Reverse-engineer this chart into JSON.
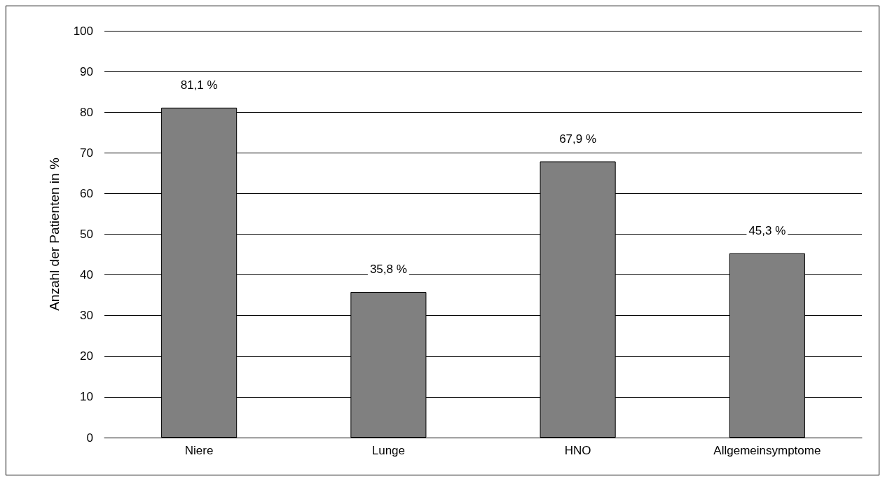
{
  "chart_data": {
    "type": "bar",
    "ylabel": "Anzahl der Patienten in %",
    "categories": [
      "Niere",
      "Lunge",
      "HNO",
      "Allgemeinsymptome"
    ],
    "values": [
      81.1,
      35.8,
      67.9,
      45.3
    ],
    "value_labels": [
      "81,1 %",
      "35,8 %",
      "67,9 %",
      "45,3 %"
    ],
    "color": "#808080",
    "ylim": [
      0,
      100
    ],
    "yticks": [
      0,
      10,
      20,
      30,
      40,
      50,
      60,
      70,
      80,
      90,
      100
    ],
    "grid": "y"
  }
}
